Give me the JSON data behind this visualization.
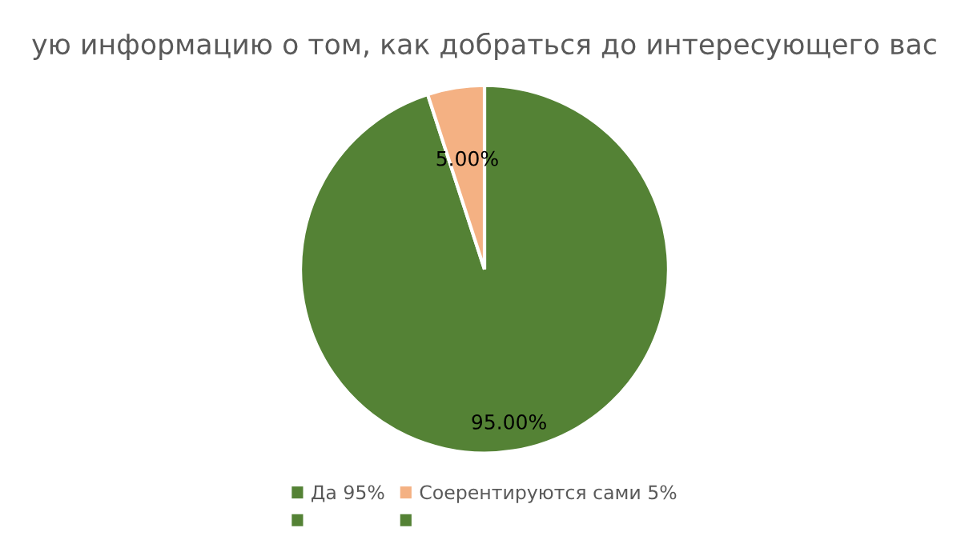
{
  "chart_data": {
    "type": "pie",
    "title": "ую информацию о том, как добраться до интересующего вас",
    "categories": [
      "Да 95%",
      "Соерентируются сами 5%",
      null,
      null
    ],
    "values": [
      95,
      5,
      0,
      0
    ],
    "colors": [
      "#548235",
      "#f4b183",
      "#548235",
      "#548235"
    ],
    "value_labels": [
      "95.00%",
      "5.00%",
      null,
      null
    ],
    "legend": "bottom"
  }
}
